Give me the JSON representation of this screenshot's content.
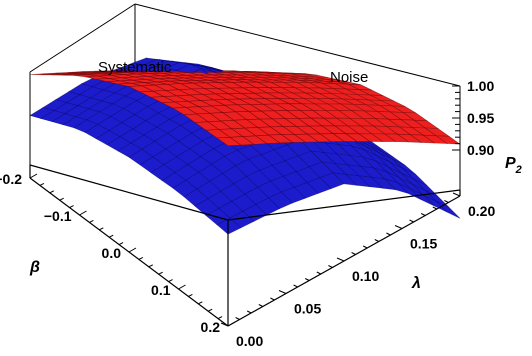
{
  "chart_data": {
    "type": "surface3d",
    "annotations": [
      "Systematic",
      "Noise"
    ],
    "axes": {
      "beta": {
        "label": "β",
        "range": [
          -0.2,
          0.2
        ],
        "ticks": [
          "−0.2",
          "−0.1",
          "0.0",
          "0.1",
          "0.2"
        ]
      },
      "lambda": {
        "label": "λ",
        "range": [
          0.0,
          0.2
        ],
        "ticks": [
          "0.00",
          "0.05",
          "0.10",
          "0.15",
          "0.20"
        ]
      },
      "p2": {
        "label": "P",
        "label_sub": "2",
        "range": [
          0.85,
          1.0
        ],
        "ticks": [
          "1.00",
          "0.95",
          "0.90"
        ]
      }
    },
    "series": [
      {
        "name": "Systematic",
        "color": "#ee1f1f",
        "beta": [
          -0.2,
          -0.1,
          0.0,
          0.1,
          0.2
        ],
        "lambda": [
          0.0,
          0.05,
          0.1,
          0.15,
          0.2
        ],
        "p2_grid": [
          [
            0.978,
            0.972,
            0.963,
            0.952,
            0.938
          ],
          [
            0.996,
            0.99,
            0.981,
            0.97,
            0.956
          ],
          [
            1.0,
            0.994,
            0.985,
            0.974,
            0.96
          ],
          [
            0.985,
            0.979,
            0.97,
            0.959,
            0.945
          ],
          [
            0.955,
            0.949,
            0.94,
            0.929,
            0.915
          ]
        ]
      },
      {
        "name": "Noise",
        "color": "#1c1ccc",
        "beta": [
          -0.2,
          -0.1,
          0.0,
          0.1,
          0.2
        ],
        "lambda": [
          0.0,
          0.05,
          0.1,
          0.15,
          0.2
        ],
        "p2_grid": [
          [
            0.92,
            0.96,
            0.98,
            0.96,
            0.92
          ],
          [
            0.92,
            0.96,
            0.99,
            0.96,
            0.91
          ],
          [
            0.9,
            0.94,
            0.96,
            0.94,
            0.89
          ],
          [
            0.87,
            0.91,
            0.93,
            0.91,
            0.86
          ],
          [
            0.83,
            0.86,
            0.88,
            0.86,
            0.81
          ]
        ]
      }
    ]
  }
}
